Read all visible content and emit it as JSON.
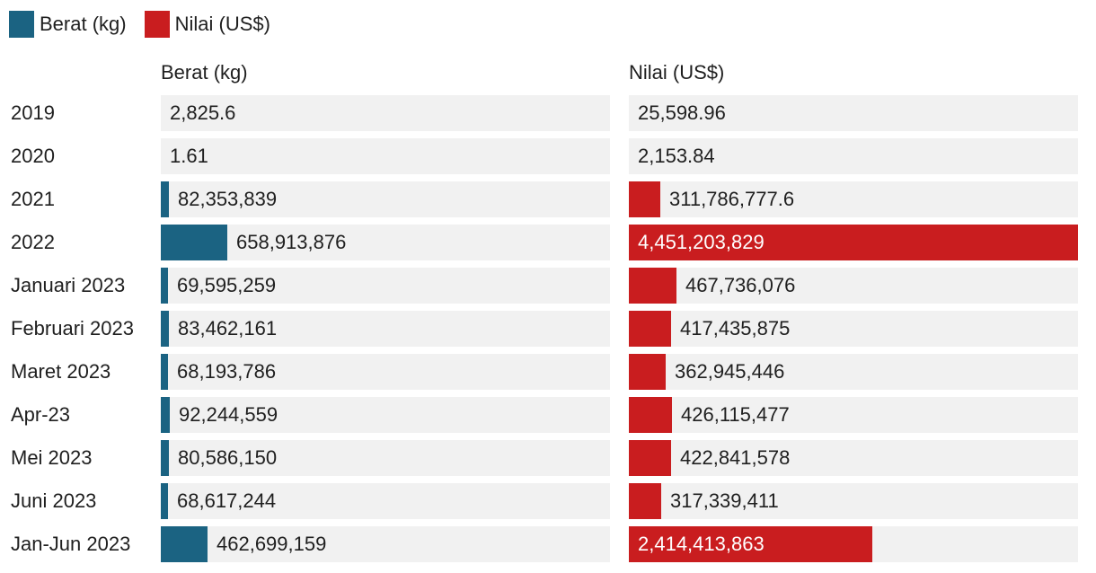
{
  "chart_data": {
    "type": "bar",
    "orientation": "horizontal",
    "layout": "two side-by-side bar panels sharing row categories",
    "legend": {
      "position": "top-left"
    },
    "categories": [
      "2019",
      "2020",
      "2021",
      "2022",
      "Januari 2023",
      "Februari 2023",
      "Maret 2023",
      "Apr-23",
      "Mei 2023",
      "Juni 2023",
      "Jan-Jun 2023"
    ],
    "series": [
      {
        "name": "Berat (kg)",
        "color": "#1b6382",
        "values": [
          2825.6,
          1.61,
          82353839,
          658913876,
          69595259,
          83462161,
          68193786,
          92244559,
          80586150,
          68617244,
          462699159
        ],
        "labels": [
          "2,825.6",
          "1.61",
          "82,353,839",
          "658,913,876",
          "69,595,259",
          "83,462,161",
          "68,193,786",
          "92,244,559",
          "80,586,150",
          "68,617,244",
          "462,699,159"
        ],
        "xlim": [
          0,
          4451203829
        ]
      },
      {
        "name": "Nilai (US$)",
        "color": "#c91d1f",
        "values": [
          25598.96,
          2153.84,
          311786777.6,
          4451203829,
          467736076,
          417435875,
          362945446,
          426115477,
          422841578,
          317339411,
          2414413863
        ],
        "labels": [
          "25,598.96",
          "2,153.84",
          "311,786,777.6",
          "4,451,203,829",
          "467,736,076",
          "417,435,875",
          "362,945,446",
          "426,115,477",
          "422,841,578",
          "317,339,411",
          "2,414,413,863"
        ],
        "xlim": [
          0,
          4451203829
        ]
      }
    ]
  }
}
